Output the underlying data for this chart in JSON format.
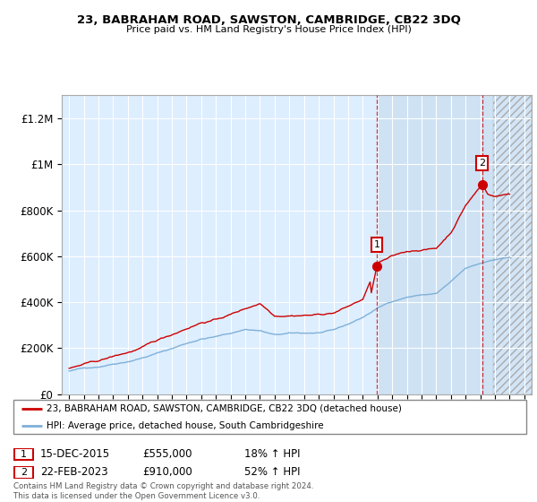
{
  "title": "23, BABRAHAM ROAD, SAWSTON, CAMBRIDGE, CB22 3DQ",
  "subtitle": "Price paid vs. HM Land Registry's House Price Index (HPI)",
  "ylabel_ticks": [
    "£0",
    "£200K",
    "£400K",
    "£600K",
    "£800K",
    "£1M",
    "£1.2M"
  ],
  "ytick_vals": [
    0,
    200000,
    400000,
    600000,
    800000,
    1000000,
    1200000
  ],
  "ylim": [
    0,
    1300000
  ],
  "xlim_start": 1994.5,
  "xlim_end": 2026.5,
  "annotation1": {
    "date": "15-DEC-2015",
    "price": "£555,000",
    "hpi": "18% ↑ HPI",
    "year": 2015.95,
    "value": 555000,
    "label": "1"
  },
  "annotation2": {
    "date": "22-FEB-2023",
    "price": "£910,000",
    "hpi": "52% ↑ HPI",
    "label": "2",
    "year": 2023.12,
    "value": 910000
  },
  "legend_line1": "23, BABRAHAM ROAD, SAWSTON, CAMBRIDGE, CB22 3DQ (detached house)",
  "legend_line2": "HPI: Average price, detached house, South Cambridgeshire",
  "footnote": "Contains HM Land Registry data © Crown copyright and database right 2024.\nThis data is licensed under the Open Government Licence v3.0.",
  "line_red_color": "#cc0000",
  "line_blue_color": "#7fb0d8",
  "bg_color": "#ddeeff",
  "bg_future_color": "#c8ddf0",
  "grid_color": "#ffffff",
  "future_start_year": 2016.0,
  "hatch_start_year": 2023.9
}
